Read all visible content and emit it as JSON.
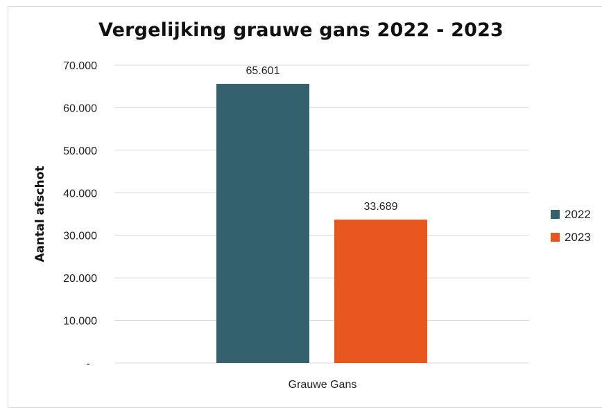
{
  "chart_data": {
    "type": "bar",
    "title": "Vergelijking grauwe gans 2022 - 2023",
    "categories": [
      "Grauwe Gans"
    ],
    "series": [
      {
        "name": "2022",
        "values": [
          65601
        ],
        "color": "#33626E",
        "label": "65.601"
      },
      {
        "name": "2023",
        "values": [
          33689
        ],
        "color": "#E8561F",
        "label": "33.689"
      }
    ],
    "ylabel": "Aantal afschot",
    "xlabel": "",
    "ylim": [
      0,
      70000
    ],
    "yticks": [
      {
        "value": 0,
        "label": "-"
      },
      {
        "value": 10000,
        "label": "10.000"
      },
      {
        "value": 20000,
        "label": "20.000"
      },
      {
        "value": 30000,
        "label": "30.000"
      },
      {
        "value": 40000,
        "label": "40.000"
      },
      {
        "value": 50000,
        "label": "50.000"
      },
      {
        "value": 60000,
        "label": "60.000"
      },
      {
        "value": 70000,
        "label": "70.000"
      }
    ],
    "grid": true,
    "legend_position": "right"
  }
}
